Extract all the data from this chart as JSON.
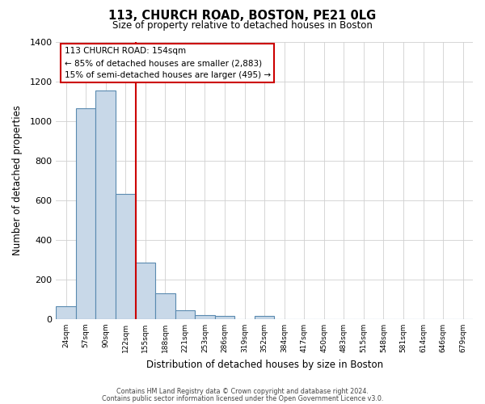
{
  "title": "113, CHURCH ROAD, BOSTON, PE21 0LG",
  "subtitle": "Size of property relative to detached houses in Boston",
  "xlabel": "Distribution of detached houses by size in Boston",
  "ylabel": "Number of detached properties",
  "bar_labels": [
    "24sqm",
    "57sqm",
    "90sqm",
    "122sqm",
    "155sqm",
    "188sqm",
    "221sqm",
    "253sqm",
    "286sqm",
    "319sqm",
    "352sqm",
    "384sqm",
    "417sqm",
    "450sqm",
    "483sqm",
    "515sqm",
    "548sqm",
    "581sqm",
    "614sqm",
    "646sqm",
    "679sqm"
  ],
  "bar_values": [
    65,
    1065,
    1155,
    630,
    285,
    130,
    45,
    20,
    15,
    0,
    15,
    0,
    0,
    0,
    0,
    0,
    0,
    0,
    0,
    0,
    0
  ],
  "bar_color": "#c8d8e8",
  "bar_edge_color": "#5a8ab0",
  "ylim": [
    0,
    1400
  ],
  "yticks": [
    0,
    200,
    400,
    600,
    800,
    1000,
    1200,
    1400
  ],
  "vline_position": 3.5,
  "annotation_title": "113 CHURCH ROAD: 154sqm",
  "annotation_line1": "← 85% of detached houses are smaller (2,883)",
  "annotation_line2": "15% of semi-detached houses are larger (495) →",
  "annotation_box_color": "#ffffff",
  "annotation_box_edge_color": "#cc0000",
  "vline_color": "#cc0000",
  "footer1": "Contains HM Land Registry data © Crown copyright and database right 2024.",
  "footer2": "Contains public sector information licensed under the Open Government Licence v3.0.",
  "background_color": "#ffffff",
  "grid_color": "#d0d0d0",
  "fig_width": 6.0,
  "fig_height": 5.0,
  "dpi": 100
}
